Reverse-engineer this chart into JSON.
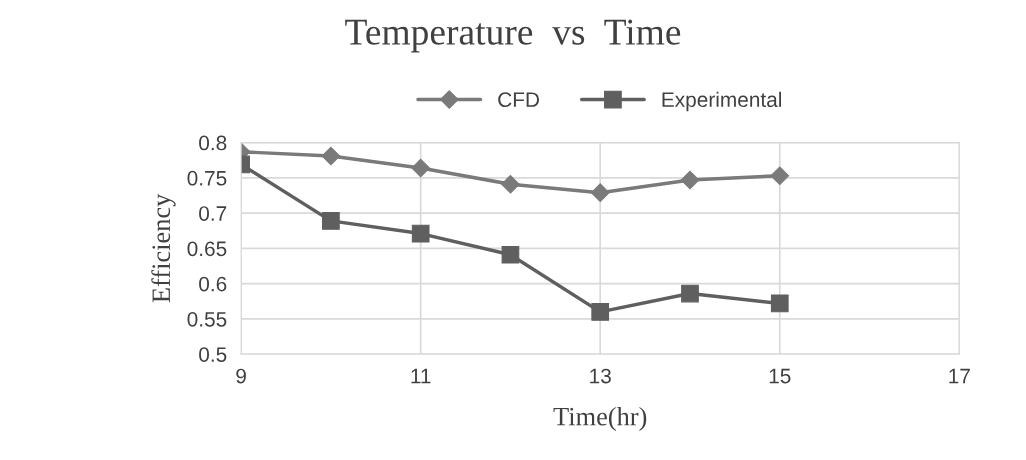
{
  "chart_data": {
    "type": "line",
    "title": "Temperature  vs  Time",
    "xlabel": "Time(hr)",
    "ylabel": "Efficiency",
    "x": [
      9,
      10,
      11,
      12,
      13,
      14,
      15
    ],
    "series": [
      {
        "name": "CFD",
        "color": "#7a7a7a",
        "marker": "diamond",
        "values": [
          0.787,
          0.781,
          0.764,
          0.741,
          0.729,
          0.747,
          0.753
        ]
      },
      {
        "name": "Experimental",
        "color": "#5f5f5f",
        "marker": "square",
        "values": [
          0.769,
          0.689,
          0.671,
          0.641,
          0.56,
          0.586,
          0.572
        ]
      }
    ],
    "xlim": [
      9,
      17
    ],
    "xticks": [
      9,
      11,
      13,
      15,
      17
    ],
    "ylim": [
      0.5,
      0.8
    ],
    "yticks": [
      0.5,
      0.55,
      0.6,
      0.65,
      0.7,
      0.75,
      0.8
    ],
    "grid": true,
    "legend": "top",
    "line_style": "solid"
  }
}
